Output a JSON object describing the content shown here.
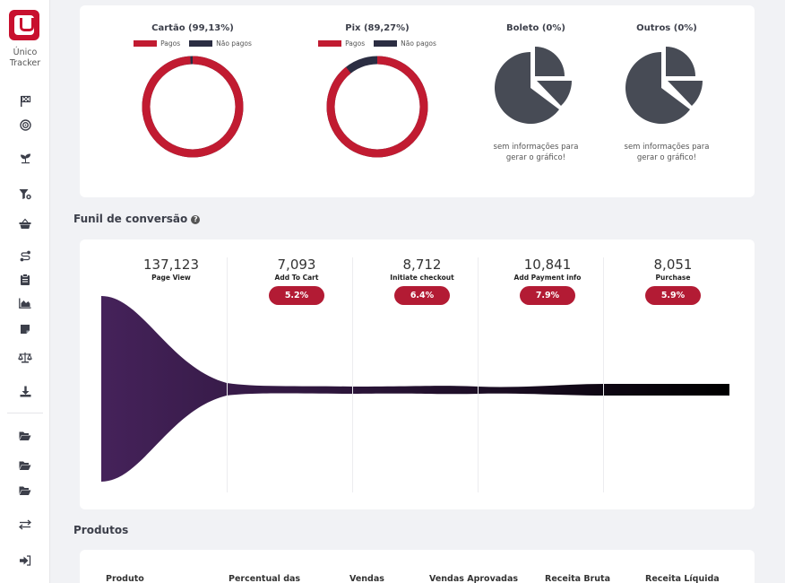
{
  "app": {
    "name_line1": "Único",
    "name_line2": "Tracker"
  },
  "sidebar": {
    "icons": [
      "flag-checkered-icon",
      "bullseye-icon",
      "seedling-icon",
      "filter-icon",
      "shopping-basket-icon",
      "route-icon",
      "clipboard-icon",
      "chart-area-icon",
      "sticky-note-icon",
      "balance-scale-icon",
      "download-icon",
      "folder-open-icon",
      "folder-open-icon",
      "folder-open-icon",
      "exchange-icon",
      "sign-out-icon"
    ]
  },
  "payments": [
    {
      "title": "Cartão (99,13%)",
      "paid": 99.13,
      "has_data": true,
      "legend_paid": "Pagos",
      "legend_unpaid": "Não pagos"
    },
    {
      "title": "Pix (89,27%)",
      "paid": 89.27,
      "has_data": true,
      "legend_paid": "Pagos",
      "legend_unpaid": "Não pagos"
    },
    {
      "title": "Boleto (0%)",
      "paid": 0,
      "has_data": false,
      "empty_line1": "sem informações para",
      "empty_line2": "gerar o gráfico!"
    },
    {
      "title": "Outros (0%)",
      "paid": 0,
      "has_data": false,
      "empty_line1": "sem informações para",
      "empty_line2": "gerar o gráfico!"
    }
  ],
  "colors": {
    "paid": "#c11b31",
    "unpaid": "#2b2d42",
    "empty_pie": "#474b55",
    "badge": "#b31b34"
  },
  "funnel": {
    "title": "Funil de conversão",
    "help_icon": "question-circle-icon",
    "steps": [
      {
        "value": "137,123",
        "label": "Page View",
        "rate": ""
      },
      {
        "value": "7,093",
        "label": "Add To Cart",
        "rate": "5.2%"
      },
      {
        "value": "8,712",
        "label": "Initiate checkout",
        "rate": "6.4%"
      },
      {
        "value": "10,841",
        "label": "Add Payment info",
        "rate": "7.9%"
      },
      {
        "value": "8,051",
        "label": "Purchase",
        "rate": "5.9%"
      }
    ]
  },
  "products": {
    "title": "Produtos",
    "headers": [
      "Produto",
      "Percentual das",
      "Vendas",
      "Vendas Aprovadas",
      "Receita Bruta",
      "Receita Líquida"
    ]
  }
}
